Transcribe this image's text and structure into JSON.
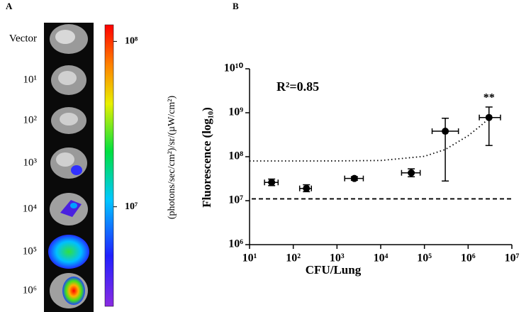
{
  "panel_a": {
    "label": "A",
    "rows": [
      "Vector",
      "10¹",
      "10²",
      "10³",
      "10⁴",
      "10⁵",
      "10⁶"
    ],
    "colorbar": {
      "label": "(photons/sec/cm²)/sr/(µW/cm²)",
      "clim": [
        2500000,
        126000000
      ],
      "log": true,
      "ticks": [
        {
          "value": 100000000,
          "label": "10⁸"
        },
        {
          "value": 10000000,
          "label": "10⁷"
        }
      ]
    }
  },
  "chart_data": {
    "type": "scatter",
    "panel_label": "B",
    "xlabel": "CFU/Lung",
    "ylabel": "Fluorescence (log₁₀)",
    "annotation": "R²=0.85",
    "significance": "**",
    "xlog": true,
    "ylog": true,
    "color": "#000000",
    "xlim": [
      10,
      10000000
    ],
    "ylim": [
      1000000,
      10000000000
    ],
    "xticks": [
      {
        "value": 10,
        "label": "10¹"
      },
      {
        "value": 100,
        "label": "10²"
      },
      {
        "value": 1000,
        "label": "10³"
      },
      {
        "value": 10000,
        "label": "10⁴"
      },
      {
        "value": 100000,
        "label": "10⁵"
      },
      {
        "value": 1000000,
        "label": "10⁶"
      },
      {
        "value": 10000000,
        "label": "10⁷"
      }
    ],
    "yticks": [
      {
        "value": 1000000,
        "label": "10⁶"
      },
      {
        "value": 10000000,
        "label": "10⁷"
      },
      {
        "value": 100000000,
        "label": "10⁸"
      },
      {
        "value": 1000000000,
        "label": "10⁹"
      },
      {
        "value": 10000000000,
        "label": "10¹⁰"
      }
    ],
    "x": [
      32,
      200,
      2500,
      50000,
      300000,
      3000000
    ],
    "values": [
      26000000,
      19000000,
      32000000,
      43000000,
      380000000,
      780000000
    ],
    "x_low": [
      22,
      140,
      1500,
      30000,
      150000,
      1800000
    ],
    "x_high": [
      45,
      260,
      4000,
      80000,
      600000,
      5500000
    ],
    "y_low": [
      22000000,
      16000000,
      29000000,
      35000000,
      28000000,
      180000000
    ],
    "y_high": [
      31000000,
      23000000,
      35000000,
      53000000,
      750000000,
      1350000000
    ],
    "threshold": 11000000,
    "fit_line": {
      "x": [
        10,
        100,
        1000,
        10000,
        100000,
        300000,
        1000000,
        2000000,
        3500000
      ],
      "values": [
        80000000,
        80000000,
        80200000,
        82000000,
        102000000,
        146000000,
        300000000,
        520000000,
        850000000
      ]
    }
  }
}
